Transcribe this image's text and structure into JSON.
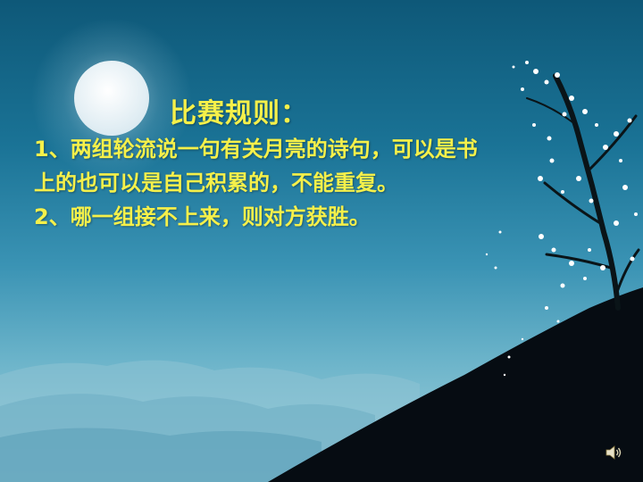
{
  "slide": {
    "title": "比赛规则：",
    "rules": [
      "1、两组轮流说一句有关月亮的诗句，可以是书上的也可以是自己积累的，不能重复。",
      "2、哪一组接不上来，则对方获胜。"
    ]
  },
  "colors": {
    "text": "#f5f04a",
    "moon": "#f2f7fa",
    "hill": "#060c12"
  },
  "icons": [
    "moon-icon",
    "speaker-icon"
  ]
}
